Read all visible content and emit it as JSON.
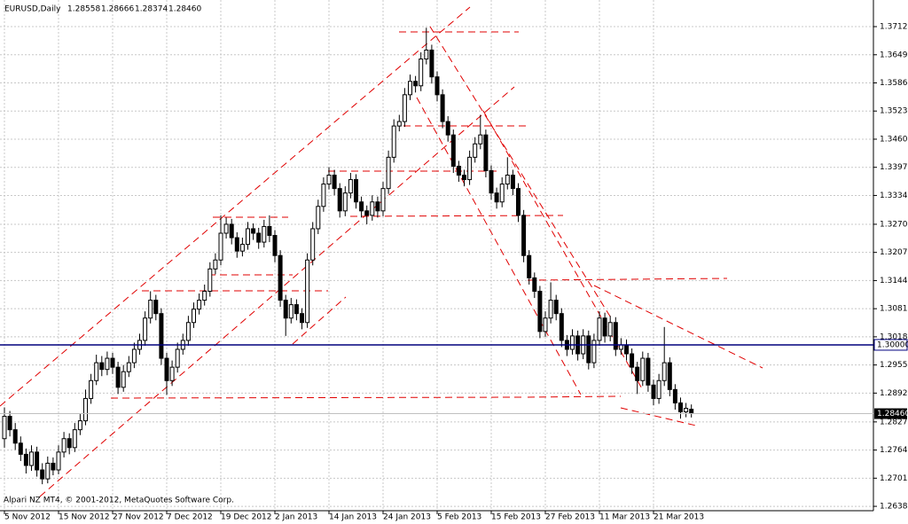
{
  "chart_data": {
    "type": "candlestick",
    "title": "EURUSD,Daily",
    "value_labels": [
      "1.28558",
      "1.28666",
      "1.28374",
      "1.28460"
    ],
    "footer": "Alpari NZ MT4, © 2001-2012, MetaQuotes Software Corp.",
    "grid": true,
    "ylim": [
      1.26307,
      1.37721
    ],
    "yticks": [
      1.37125,
      1.36495,
      1.35865,
      1.35235,
      1.34605,
      1.33975,
      1.33345,
      {
        "value": 1.327,
        "label": "1.32700"
      },
      {
        "value": 1.3207,
        "label": "1.32070"
      },
      {
        "value": 1.3144,
        "label": "1.31440"
      },
      {
        "value": 1.3081,
        "label": "1.30810"
      },
      {
        "value": 1.3018,
        "label": "1.30180"
      },
      {
        "value": 1.2955,
        "label": "1.29550"
      },
      {
        "value": 1.2892,
        "label": "1.28920"
      },
      1.28275,
      1.27645,
      1.27015,
      1.26385
    ],
    "hlines": [
      {
        "value": 1.3,
        "label": "1.30000",
        "color": "#00007f"
      }
    ],
    "bid": {
      "value": 1.2846,
      "label": "1.28460",
      "color": "#c0c0c0"
    },
    "categories": [
      "5 Nov 2012",
      null,
      null,
      null,
      null,
      null,
      null,
      null,
      null,
      null,
      "15 Nov 2012",
      null,
      null,
      null,
      null,
      null,
      null,
      null,
      null,
      null,
      "27 Nov 2012",
      null,
      null,
      null,
      null,
      null,
      null,
      null,
      null,
      null,
      "7 Dec 2012",
      null,
      null,
      null,
      null,
      null,
      null,
      null,
      null,
      null,
      "19 Dec 2012",
      null,
      null,
      null,
      null,
      null,
      null,
      null,
      null,
      null,
      "2 Jan 2013",
      null,
      null,
      null,
      null,
      null,
      null,
      null,
      null,
      null,
      "14 Jan 2013",
      null,
      null,
      null,
      null,
      null,
      null,
      null,
      null,
      null,
      "24 Jan 2013",
      null,
      null,
      null,
      null,
      null,
      null,
      null,
      null,
      null,
      "5 Feb 2013",
      null,
      null,
      null,
      null,
      null,
      null,
      null,
      null,
      null,
      "15 Feb 2013",
      null,
      null,
      null,
      null,
      null,
      null,
      null,
      null,
      null,
      "27 Feb 2013",
      null,
      null,
      null,
      null,
      null,
      null,
      null,
      null,
      null,
      "11 Mar 2013",
      null,
      null,
      null,
      null,
      null,
      null,
      null,
      null,
      null,
      "21 Mar 2013",
      null,
      null,
      null,
      null,
      null,
      null,
      null
    ],
    "ohlc": [
      [
        1.279,
        1.286,
        1.277,
        1.284
      ],
      [
        1.284,
        1.2852,
        1.2795,
        1.281
      ],
      [
        1.281,
        1.2825,
        1.2765,
        1.278
      ],
      [
        1.278,
        1.2795,
        1.274,
        1.2755
      ],
      [
        1.2755,
        1.2768,
        1.2712,
        1.273
      ],
      [
        1.273,
        1.2775,
        1.2718,
        1.276
      ],
      [
        1.276,
        1.2772,
        1.2705,
        1.272
      ],
      [
        1.272,
        1.2735,
        1.2688,
        1.27
      ],
      [
        1.27,
        1.275,
        1.269,
        1.2735
      ],
      [
        1.2735,
        1.2748,
        1.2708,
        1.272
      ],
      [
        1.272,
        1.2775,
        1.271,
        1.276
      ],
      [
        1.276,
        1.2805,
        1.2748,
        1.279
      ],
      [
        1.279,
        1.2802,
        1.2755,
        1.277
      ],
      [
        1.277,
        1.2825,
        1.276,
        1.281
      ],
      [
        1.281,
        1.2845,
        1.2798,
        1.283
      ],
      [
        1.283,
        1.29,
        1.282,
        1.288
      ],
      [
        1.288,
        1.2935,
        1.2868,
        1.292
      ],
      [
        1.292,
        1.2978,
        1.291,
        1.296
      ],
      [
        1.296,
        1.2975,
        1.293,
        1.2945
      ],
      [
        1.2945,
        1.2985,
        1.2932,
        1.297
      ],
      [
        1.297,
        1.2982,
        1.2935,
        1.295
      ],
      [
        1.295,
        1.2962,
        1.289,
        1.2905
      ],
      [
        1.2905,
        1.2955,
        1.2895,
        1.294
      ],
      [
        1.294,
        1.2975,
        1.2928,
        1.296
      ],
      [
        1.296,
        1.3005,
        1.2948,
        1.299
      ],
      [
        1.299,
        1.3025,
        1.2978,
        1.301
      ],
      [
        1.301,
        1.3075,
        1.2998,
        1.306
      ],
      [
        1.306,
        1.312,
        1.3048,
        1.31
      ],
      [
        1.31,
        1.3112,
        1.3055,
        1.307
      ],
      [
        1.307,
        1.3082,
        1.2955,
        1.297
      ],
      [
        1.297,
        1.2982,
        1.2888,
        1.292
      ],
      [
        1.292,
        1.2965,
        1.2908,
        1.295
      ],
      [
        1.295,
        1.3005,
        1.2938,
        1.299
      ],
      [
        1.299,
        1.3025,
        1.2978,
        1.301
      ],
      [
        1.301,
        1.3065,
        1.2998,
        1.305
      ],
      [
        1.305,
        1.3095,
        1.3038,
        1.308
      ],
      [
        1.308,
        1.3115,
        1.3068,
        1.31
      ],
      [
        1.31,
        1.3135,
        1.3088,
        1.312
      ],
      [
        1.312,
        1.3185,
        1.3108,
        1.317
      ],
      [
        1.317,
        1.3205,
        1.3158,
        1.319
      ],
      [
        1.319,
        1.329,
        1.3178,
        1.325
      ],
      [
        1.325,
        1.3285,
        1.3238,
        1.327
      ],
      [
        1.327,
        1.3282,
        1.3225,
        1.324
      ],
      [
        1.324,
        1.3252,
        1.3195,
        1.321
      ],
      [
        1.321,
        1.324,
        1.3198,
        1.3225
      ],
      [
        1.3225,
        1.3275,
        1.3213,
        1.326
      ],
      [
        1.326,
        1.3272,
        1.3235,
        1.325
      ],
      [
        1.325,
        1.3262,
        1.3215,
        1.323
      ],
      [
        1.323,
        1.328,
        1.3218,
        1.3265
      ],
      [
        1.3265,
        1.329,
        1.323,
        1.3245
      ],
      [
        1.3245,
        1.3257,
        1.3185,
        1.32
      ],
      [
        1.32,
        1.3212,
        1.3085,
        1.31
      ],
      [
        1.31,
        1.3112,
        1.302,
        1.306
      ],
      [
        1.306,
        1.3105,
        1.3048,
        1.309
      ],
      [
        1.309,
        1.3102,
        1.3055,
        1.307
      ],
      [
        1.307,
        1.3082,
        1.3035,
        1.305
      ],
      [
        1.305,
        1.3205,
        1.3038,
        1.319
      ],
      [
        1.319,
        1.3275,
        1.3178,
        1.326
      ],
      [
        1.326,
        1.3325,
        1.3248,
        1.331
      ],
      [
        1.331,
        1.3375,
        1.3298,
        1.336
      ],
      [
        1.336,
        1.3398,
        1.3348,
        1.338
      ],
      [
        1.338,
        1.3392,
        1.3335,
        1.335
      ],
      [
        1.335,
        1.3362,
        1.3285,
        1.33
      ],
      [
        1.33,
        1.3355,
        1.3288,
        1.334
      ],
      [
        1.334,
        1.3385,
        1.3328,
        1.337
      ],
      [
        1.337,
        1.3382,
        1.3305,
        1.332
      ],
      [
        1.332,
        1.3332,
        1.3285,
        1.33
      ],
      [
        1.33,
        1.3312,
        1.327,
        1.329
      ],
      [
        1.329,
        1.3335,
        1.3278,
        1.332
      ],
      [
        1.332,
        1.3332,
        1.3285,
        1.33
      ],
      [
        1.33,
        1.3365,
        1.3288,
        1.335
      ],
      [
        1.335,
        1.3435,
        1.3338,
        1.342
      ],
      [
        1.342,
        1.3505,
        1.3408,
        1.349
      ],
      [
        1.349,
        1.3515,
        1.3478,
        1.35
      ],
      [
        1.35,
        1.3575,
        1.3488,
        1.356
      ],
      [
        1.356,
        1.3605,
        1.3548,
        1.359
      ],
      [
        1.359,
        1.3602,
        1.3565,
        1.358
      ],
      [
        1.358,
        1.3655,
        1.3568,
        1.364
      ],
      [
        1.364,
        1.371,
        1.3628,
        1.366
      ],
      [
        1.366,
        1.3672,
        1.3585,
        1.36
      ],
      [
        1.36,
        1.3612,
        1.3545,
        1.356
      ],
      [
        1.356,
        1.3572,
        1.3485,
        1.35
      ],
      [
        1.35,
        1.3512,
        1.3455,
        1.347
      ],
      [
        1.347,
        1.3482,
        1.3385,
        1.34
      ],
      [
        1.34,
        1.3412,
        1.3365,
        1.338
      ],
      [
        1.338,
        1.3392,
        1.3355,
        1.337
      ],
      [
        1.337,
        1.3435,
        1.3358,
        1.342
      ],
      [
        1.342,
        1.3465,
        1.3408,
        1.345
      ],
      [
        1.345,
        1.3515,
        1.3438,
        1.347
      ],
      [
        1.347,
        1.3482,
        1.3375,
        1.339
      ],
      [
        1.339,
        1.3402,
        1.3325,
        1.334
      ],
      [
        1.334,
        1.3352,
        1.3305,
        1.332
      ],
      [
        1.332,
        1.3375,
        1.3308,
        1.336
      ],
      [
        1.336,
        1.342,
        1.3348,
        1.338
      ],
      [
        1.338,
        1.3392,
        1.3335,
        1.335
      ],
      [
        1.335,
        1.3362,
        1.3275,
        1.329
      ],
      [
        1.329,
        1.3302,
        1.3185,
        1.32
      ],
      [
        1.32,
        1.3212,
        1.3135,
        1.315
      ],
      [
        1.315,
        1.3162,
        1.3105,
        1.312
      ],
      [
        1.312,
        1.3132,
        1.3015,
        1.303
      ],
      [
        1.303,
        1.3075,
        1.3018,
        1.306
      ],
      [
        1.306,
        1.314,
        1.3048,
        1.31
      ],
      [
        1.31,
        1.3112,
        1.3055,
        1.307
      ],
      [
        1.307,
        1.3082,
        1.2995,
        1.301
      ],
      [
        1.301,
        1.3022,
        1.2975,
        1.299
      ],
      [
        1.299,
        1.3035,
        1.2978,
        1.302
      ],
      [
        1.302,
        1.3032,
        1.2965,
        1.298
      ],
      [
        1.298,
        1.3035,
        1.2968,
        1.302
      ],
      [
        1.302,
        1.3032,
        1.2945,
        1.296
      ],
      [
        1.296,
        1.3025,
        1.2948,
        1.301
      ],
      [
        1.301,
        1.3075,
        1.2998,
        1.306
      ],
      [
        1.306,
        1.3072,
        1.3005,
        1.302
      ],
      [
        1.302,
        1.3065,
        1.3008,
        1.305
      ],
      [
        1.305,
        1.3062,
        1.2975,
        1.299
      ],
      [
        1.299,
        1.3015,
        1.2978,
        1.3
      ],
      [
        1.3,
        1.3012,
        1.2965,
        1.298
      ],
      [
        1.298,
        1.2992,
        1.2935,
        1.295
      ],
      [
        1.295,
        1.2962,
        1.289,
        1.292
      ],
      [
        1.292,
        1.2985,
        1.2908,
        1.297
      ],
      [
        1.297,
        1.2982,
        1.2895,
        1.291
      ],
      [
        1.291,
        1.2922,
        1.2865,
        1.288
      ],
      [
        1.288,
        1.2935,
        1.2868,
        1.292
      ],
      [
        1.292,
        1.304,
        1.2908,
        1.296
      ],
      [
        1.296,
        1.2972,
        1.2885,
        1.29
      ],
      [
        1.29,
        1.2912,
        1.2855,
        1.287
      ],
      [
        1.287,
        1.2882,
        1.2835,
        1.285
      ],
      [
        1.285,
        1.287,
        1.2838,
        1.2858
      ],
      [
        1.28558,
        1.28666,
        1.28374,
        1.2846
      ]
    ]
  }
}
